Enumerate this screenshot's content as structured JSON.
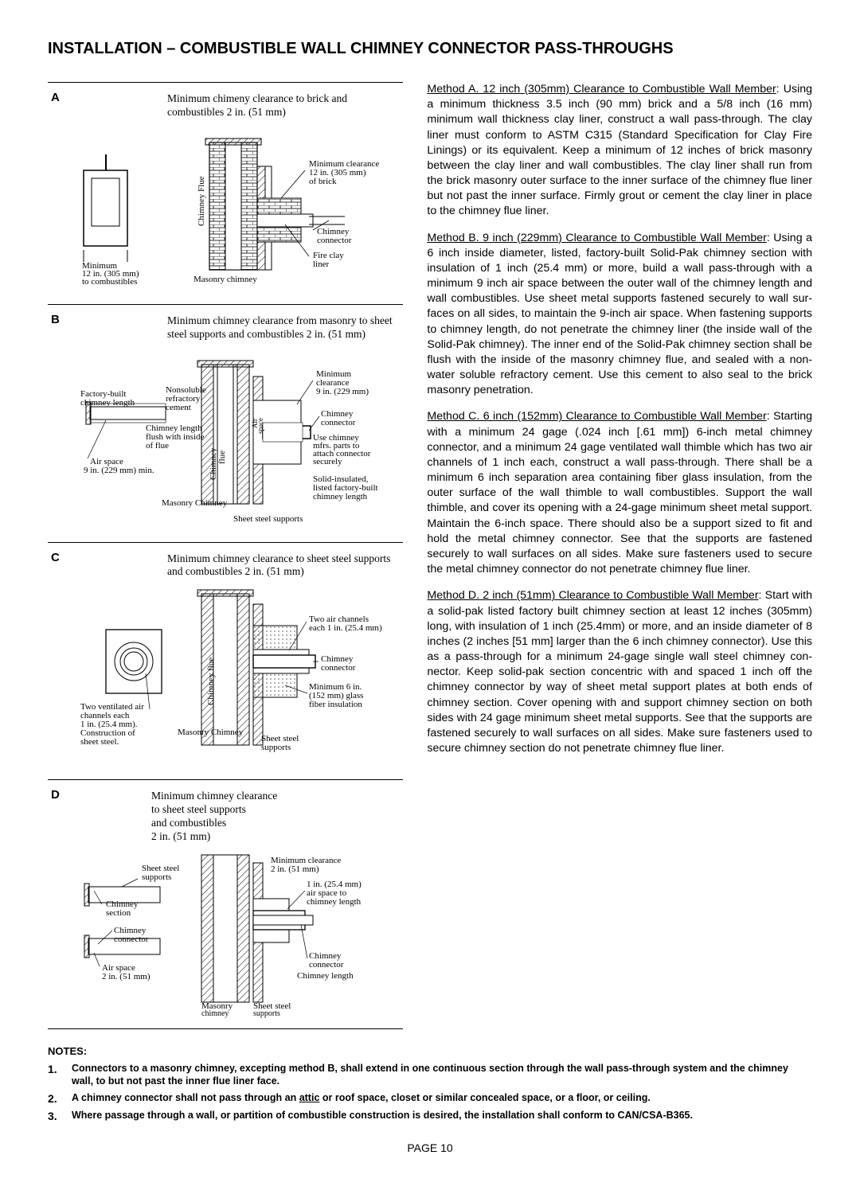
{
  "title": "INSTALLATION – COMBUSTIBLE WALL CHIMNEY CONNECTOR PASS-THROUGHS",
  "diagrams": {
    "A": {
      "label": "A",
      "caption": "Minimum chimeny clearance to brick and combustibles 2 in. (51 mm)",
      "lbl_min_clear": "Minimum clearance\n12 in. (305 mm)\nof brick",
      "lbl_chimney_flue": "Chimney Flue",
      "lbl_connector": "Chimney\nconnector",
      "lbl_fire_clay": "Fire clay\nliner",
      "lbl_masonry": "Masonry chimney",
      "lbl_min_combust": "Minimum\n12 in. (305 mm)\nto combustibles"
    },
    "B": {
      "label": "B",
      "caption": "Minimum chimney clearance from masonry to sheet steel supports and combustibles 2 in. (51 mm)",
      "lbl_min_clear": "Minimum\nclearance\n9 in. (229 mm)",
      "lbl_nonsoluble": "Nonsoluble\nrefractory\ncement",
      "lbl_factory": "Factory-built\nchimney length",
      "lbl_connector": "Chimney\nconnector",
      "lbl_chimney_len": "Chimney length\nflush with inside\nof flue",
      "lbl_use": "Use chimney\nmfrs. parts to\nattach connector\nsecurely",
      "lbl_airspace": "Air space\n9 in. (229 mm) min.",
      "lbl_chimney_flue": "Chimney\nflue",
      "lbl_solid": "Solid-insulated,\nlisted factory-built\nchimney length",
      "lbl_masonry": "Masonry Chimney",
      "lbl_sheet": "Sheet steel supports",
      "lbl_air_space_small": "Air\nspace"
    },
    "C": {
      "label": "C",
      "caption": "Minimum chimney clearance to sheet steel supports and combustibles 2 in. (51 mm)",
      "lbl_two_air": "Two air channels\neach 1 in. (25.4 mm)",
      "lbl_connector": "Chimney\nconnector",
      "lbl_min6": "Minimum 6 in.\n(152 mm) glass\nfiber insulation",
      "lbl_chimney_flue": "Chimney flue",
      "lbl_two_vent": "Two ventilated air\nchannels each\n1 in. (25.4 mm).\nConstruction of\nsheet steel.",
      "lbl_masonry": "Masonry Chimney",
      "lbl_sheet": "Sheet steel\nsupports"
    },
    "D": {
      "label": "D",
      "caption": "Minimum chimney clearance to sheet steel supports and combustibles 2 in. (51 mm)",
      "lbl_min_clear": "Minimum clearance\n2 in. (51 mm)",
      "lbl_sheet_sup": "Sheet steel\nsupports",
      "lbl_1in": "1 in. (25.4 mm)\nair space to\nchimney length",
      "lbl_chimney_sec": "Chimney\nsection",
      "lbl_chimney_conn": "Chimney\nconnector",
      "lbl_chimney_conn2": "Chimney\nconnector",
      "lbl_airspace": "Air space\n2 in. (51 mm)",
      "lbl_chimney_len": "Chimney length",
      "lbl_masonry": "Masonry\nchimney",
      "lbl_sheet": "Sheet steel\nsupports"
    }
  },
  "methods": {
    "A": {
      "title": "Method A. 12 inch (305mm) Clearance to Combustible Wall Member",
      "body": ": Using a minimum thickness 3.5 inch (90 mm) brick and a 5/8 inch (16 mm) minimum wall thickness clay liner, construct a wall pass-through.  The clay liner must conform to ASTM C315 (Standard Specification for Clay Fire Linings) or its equivalent. Keep a minimum of 12 inches of brick masonry between the clay liner and wall combustibles.  The clay liner shall run from the brick masonry outer surface to the inner surface of the chimney flue liner but not past the inner surface.  Firmly grout or cement the clay liner in place to the chimney flue liner."
    },
    "B": {
      "title": "Method B. 9 inch (229mm) Clearance to Combustible Wall Member",
      "body": ": Using a 6 inch inside diameter, listed, factory-built Solid-Pak chimney section with insulation of 1 inch (25.4 mm) or more, build a wall pass-through with a minimum 9 inch air space between the outer wall of the chimney length and wall combusti­bles.  Use sheet metal supports fastened securely to wall sur­faces on all sides, to maintain the 9-inch air space.  When fas­tening supports to chimney length, do not penetrate the chimney liner (the inside wall of the Solid-Pak chimney).  The inner end of the Solid-Pak chimney section shall be flush with the inside of the masonry chimney flue, and sealed with a non-water soluble re­fractory cement.  Use this cement to also seal to the brick ma­sonry penetration."
    },
    "C": {
      "title": "Method C. 6 inch (152mm) Clearance to Combustible Wall Member",
      "body": ": Starting with a minimum 24 gage (.024 inch [.61 mm]) 6-inch metal chimney connector, and a minimum 24 gage venti­lated wall thimble which has two air channels of 1 inch each, construct a wall pass-through. There shall be a minimum 6 inch separation area containing fiber glass insulation, from the outer surface of the wall thimble to wall combustibles.  Support the wall thimble, and cover its opening with a 24-gage minimum sheet metal support. Maintain the 6-inch space.  There should also be a support sized to fit and hold the metal chimney connector. See that the supports are fastened securely to wall surfaces on all sides.  Make sure fasteners used to secure the metal chimney connector do not penetrate chimney flue liner."
    },
    "D": {
      "title": "Method D.  2 inch (51mm) Clearance to Combustible Wall Mem­ber",
      "body": ": Start with a solid-pak listed factory built chimney section at least 12 inches (305mm) long, with insulation of 1 inch (25.4mm) or more, and an inside diameter of 8 inches (2 inches [51 mm] larger than the 6 inch chimney connector). Use this as a pass-through for a minimum 24-gage single wall steel chimney con­nector. Keep solid-pak section concentric with and spaced 1 inch off the chimney connector by way of sheet metal support plates at both ends of chimney section.  Cover opening with and sup­port chimney section on both sides with 24 gage minimum sheet metal supports. See that the supports are fastened securely to wall surfaces on all sides. Make sure fasteners used to secure chimney section do not penetrate chimney flue liner."
    }
  },
  "notes": {
    "heading": "NOTES:",
    "items": [
      "Connectors to a masonry chimney, excepting method B, shall extend in one continuous section through the wall pass-through system and the chimney wall, to but not past the inner flue liner face.",
      "A chimney connector shall not pass through an |attic| or roof space, closet or similar concealed space, or a floor, or ceiling.",
      "Where passage through a wall, or partition of combustible construction is desired, the installation shall conform to CAN/CSA-B365."
    ]
  },
  "page": "PAGE 10",
  "colors": {
    "text": "#000000",
    "bg": "#ffffff",
    "hatch": "#333333"
  }
}
